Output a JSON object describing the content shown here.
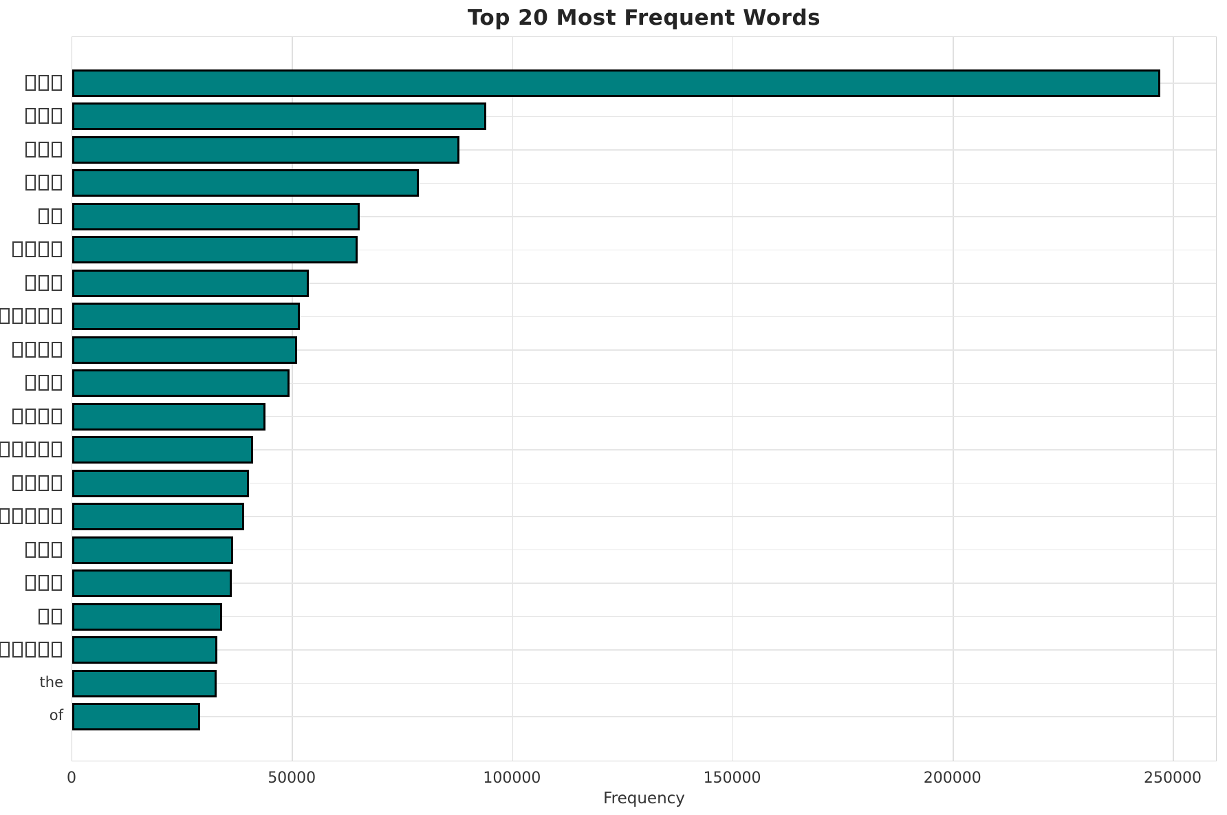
{
  "chart_data": {
    "type": "bar",
    "orientation": "horizontal",
    "title": "Top 20 Most Frequent Words",
    "xlabel": "Frequency",
    "ylabel": "",
    "legend": null,
    "grid": true,
    "categories": [
      "□□□",
      "□□□",
      "□□□",
      "□□□",
      "□□",
      "□□□□",
      "□□□",
      "□□□□□□",
      "□□□□",
      "□□□",
      "□□□□",
      "□□□□□",
      "□□□□",
      "□□□□□",
      "□□□",
      "□□□",
      "□□",
      "□□□□□□",
      "the",
      "of"
    ],
    "categories_note": "□ = missing-glyph (tofu) box exactly as rendered in the pixels; only 'the' and 'of' rendered as readable text",
    "values": [
      247000,
      94000,
      87900,
      78700,
      65200,
      64800,
      53700,
      51700,
      51000,
      49400,
      43900,
      41000,
      40100,
      39000,
      36600,
      36200,
      34000,
      33000,
      32800,
      29000
    ],
    "x_ticks": [
      0,
      50000,
      100000,
      150000,
      200000,
      250000
    ],
    "x_tick_labels": [
      "0",
      "50000",
      "100000",
      "150000",
      "200000",
      "250000"
    ],
    "xlim": [
      0,
      260000
    ],
    "bar_color": "#008080",
    "bar_edge_color": "#000000",
    "grid_color": "#e0e0e0",
    "text_color": "#333333",
    "title_color": "#252525",
    "background_color": "#ffffff"
  }
}
